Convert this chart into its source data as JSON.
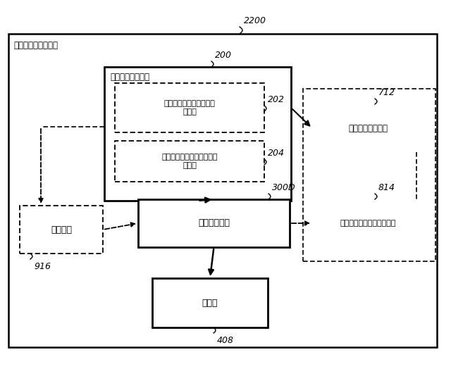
{
  "title_label": "2200",
  "outer_box_label": "等化器コントローラ",
  "audio_classifier_box_label": "オーディオ分類器",
  "audio_classifier_ref": "200",
  "content_classifier_label": "オーディオ・コンテンツ\n分類器",
  "content_classifier_ref": "202",
  "context_classifier_label": "オーディオ・コンテキスト\n分類器",
  "context_classifier_ref": "204",
  "type_smooth_label": "型平滑化ユニット",
  "type_smooth_ref": "712",
  "adjust_unit_label": "調整ユニット",
  "adjust_unit_ref": "300D",
  "param_smooth_label": "パラメータ平滑化ユニット",
  "param_smooth_ref": "814",
  "timer_label": "タイマー",
  "timer_ref": "916",
  "equalizer_label": "等化器",
  "equalizer_ref": "408"
}
